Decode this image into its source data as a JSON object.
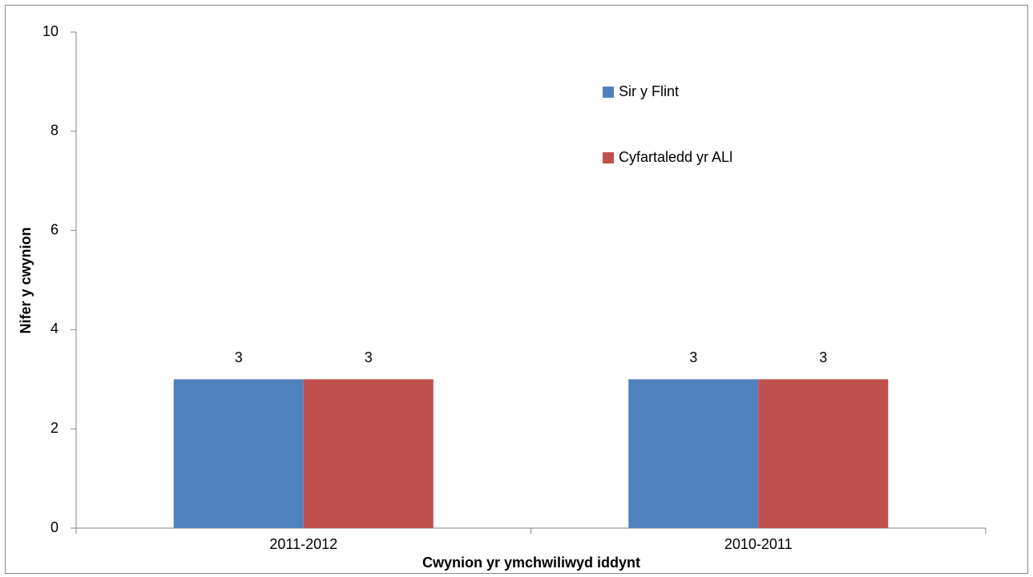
{
  "chart_data": {
    "type": "bar",
    "xlabel": "Cwynion yr ymchwiliwyd iddynt",
    "ylabel": "Nifer y cwynion",
    "categories": [
      "2011-2012",
      "2010-2011"
    ],
    "series": [
      {
        "name": "Sir y Flint",
        "color": "#4f81bd",
        "values": [
          3,
          3
        ]
      },
      {
        "name": "Cyfartaledd yr ALl",
        "color": "#c0504d",
        "values": [
          3,
          3
        ]
      }
    ],
    "ylim": [
      0,
      10
    ],
    "yticks": [
      0,
      2,
      4,
      6,
      8,
      10
    ],
    "grid": false
  }
}
